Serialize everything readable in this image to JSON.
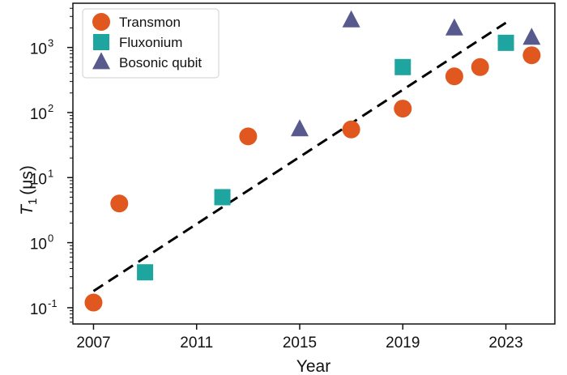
{
  "chart_data": {
    "type": "scatter",
    "xlabel": "Year",
    "ylabel_main": "T",
    "ylabel_sub": "1",
    "ylabel_unit": "(μs)",
    "xlim": [
      2006.2,
      2024.9
    ],
    "ylim_log10": [
      -1.25,
      3.68
    ],
    "log_scale_y": true,
    "x_ticks": [
      2007,
      2011,
      2015,
      2019,
      2023
    ],
    "y_ticks": [
      {
        "exp": -1,
        "base": "10",
        "sup": "-1"
      },
      {
        "exp": 0,
        "base": "10",
        "sup": "0"
      },
      {
        "exp": 1,
        "base": "10",
        "sup": "1"
      },
      {
        "exp": 2,
        "base": "10",
        "sup": "2"
      },
      {
        "exp": 3,
        "base": "10",
        "sup": "3"
      }
    ],
    "grid": false,
    "legend_position": "top-left",
    "series": [
      {
        "name": "Transmon",
        "marker": "circle",
        "color": "#E0581F",
        "points": [
          {
            "x": 2007,
            "y": 0.12
          },
          {
            "x": 2008,
            "y": 4
          },
          {
            "x": 2013,
            "y": 43
          },
          {
            "x": 2017,
            "y": 55
          },
          {
            "x": 2019,
            "y": 115
          },
          {
            "x": 2021,
            "y": 360
          },
          {
            "x": 2022,
            "y": 500
          },
          {
            "x": 2024,
            "y": 760
          }
        ]
      },
      {
        "name": "Fluxonium",
        "marker": "square",
        "color": "#1EA5A0",
        "points": [
          {
            "x": 2009,
            "y": 0.35
          },
          {
            "x": 2012,
            "y": 5
          },
          {
            "x": 2019,
            "y": 500
          },
          {
            "x": 2023,
            "y": 1180
          }
        ]
      },
      {
        "name": "Bosonic qubit",
        "marker": "triangle",
        "color": "#58598C",
        "points": [
          {
            "x": 2015,
            "y": 55
          },
          {
            "x": 2017,
            "y": 2600
          },
          {
            "x": 2021,
            "y": 1950
          },
          {
            "x": 2024,
            "y": 1400
          }
        ]
      }
    ],
    "trend_line": {
      "style": "dashed",
      "color": "#000000",
      "points": [
        {
          "x": 2007,
          "y": 0.18
        },
        {
          "x": 2023,
          "y": 2400
        }
      ]
    }
  }
}
